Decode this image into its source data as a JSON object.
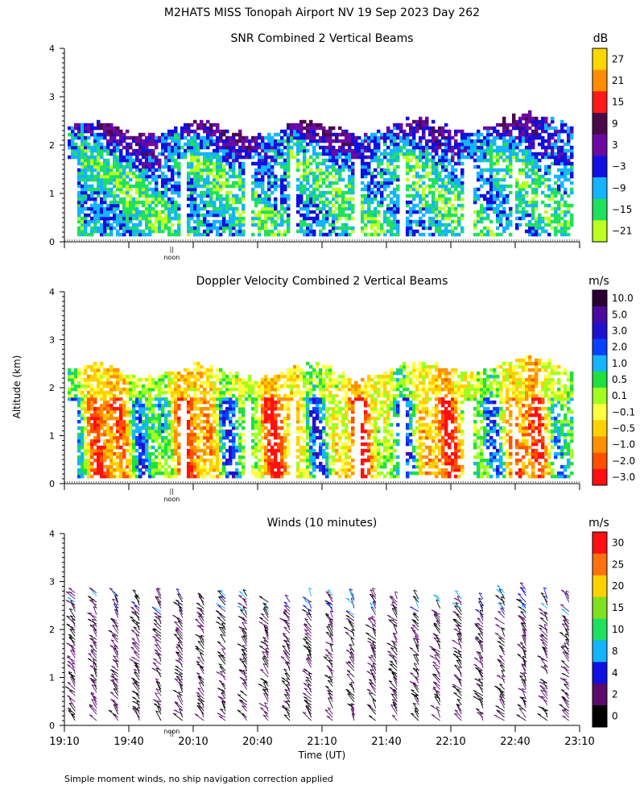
{
  "title": "M2HATS MISS Tonopah Airport NV  19 Sep 2023 Day 262",
  "y_axis_label": "Altitude (km)",
  "x_axis_label": "Time (UT)",
  "footnote": "Simple moment winds, no ship navigation correction applied",
  "noon_label": "noon",
  "noon_marker": "||",
  "noon_time": "20:00",
  "time_ticks": [
    "19:10",
    "19:40",
    "20:10",
    "20:40",
    "21:10",
    "21:40",
    "22:10",
    "22:40",
    "23:10"
  ],
  "altitude_ticks": [
    "0",
    "1",
    "2",
    "3",
    "4"
  ],
  "chart_data": [
    {
      "type": "heatmap",
      "title": "SNR Combined 2 Vertical Beams",
      "unit": "dB",
      "xlim": [
        "19:10",
        "23:10"
      ],
      "ylim": [
        0,
        4
      ],
      "colorbar": {
        "labels": [
          "27",
          "21",
          "15",
          "9",
          "3",
          "−3",
          "−9",
          "−15",
          "−21"
        ],
        "colors": [
          "#ffd700",
          "#ff8c00",
          "#ff1a1a",
          "#4a0a4a",
          "#6a0aa0",
          "#1010e0",
          "#14b4ff",
          "#20e060",
          "#bcff20"
        ]
      }
    },
    {
      "type": "heatmap",
      "title": "Doppler Velocity Combined 2 Vertical Beams",
      "unit": "m/s",
      "xlim": [
        "19:10",
        "23:10"
      ],
      "ylim": [
        0,
        4
      ],
      "colorbar": {
        "labels": [
          "10.0",
          "5.0",
          "3.0",
          "2.0",
          "1.0",
          "0.5",
          "0.1",
          "−0.1",
          "−0.5",
          "−1.0",
          "−2.0",
          "−3.0"
        ],
        "colors": [
          "#2a0030",
          "#4a0aa0",
          "#2010d0",
          "#0a40ff",
          "#14b4ff",
          "#20e040",
          "#a0ff20",
          "#ffff40",
          "#ffd000",
          "#ff9000",
          "#ff5000",
          "#ff1010"
        ]
      }
    },
    {
      "type": "scatter",
      "title": "Winds (10 minutes)",
      "unit": "m/s",
      "xlim": [
        "19:10",
        "23:10"
      ],
      "ylim": [
        0,
        4
      ],
      "colorbar": {
        "labels": [
          "30",
          "25",
          "20",
          "15",
          "10",
          "8",
          "4",
          "2",
          "0"
        ],
        "colors": [
          "#ff1010",
          "#ff7010",
          "#ffd000",
          "#80e020",
          "#20e060",
          "#14b4ff",
          "#1010e0",
          "#5a0a6a",
          "#000000"
        ]
      }
    }
  ]
}
